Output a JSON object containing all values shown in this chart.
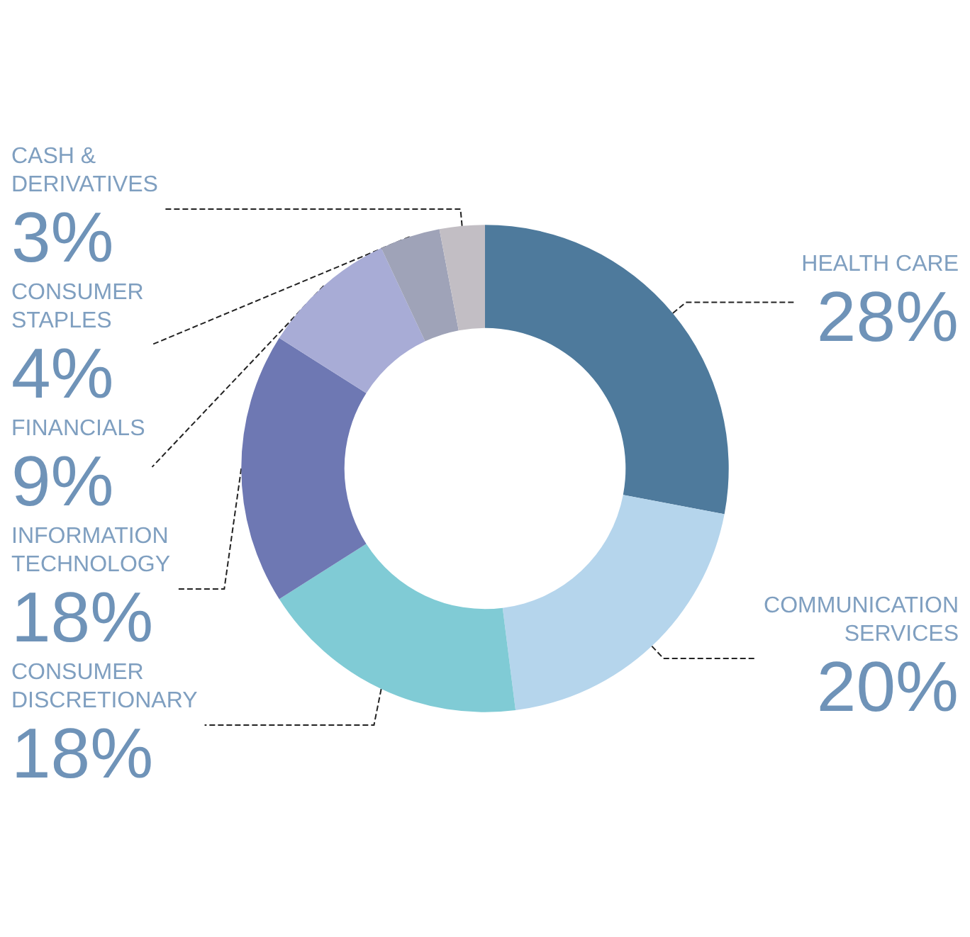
{
  "chart_data": {
    "type": "donut",
    "categories": [
      "HEALTH CARE",
      "COMMUNICATION SERVICES",
      "CONSUMER DISCRETIONARY",
      "INFORMATION TECHNOLOGY",
      "FINANCIALS",
      "CONSUMER STAPLES",
      "CASH & DERIVATIVES"
    ],
    "values": [
      28,
      20,
      18,
      18,
      9,
      4,
      3
    ],
    "colors": [
      "#4e7a9c",
      "#b5d5ec",
      "#80cbd5",
      "#6e78b3",
      "#a8acd6",
      "#9fa3b8",
      "#c2bec4"
    ],
    "value_labels": [
      "28%",
      "20%",
      "18%",
      "18%",
      "9%",
      "4%",
      "3%"
    ],
    "legend": false
  }
}
